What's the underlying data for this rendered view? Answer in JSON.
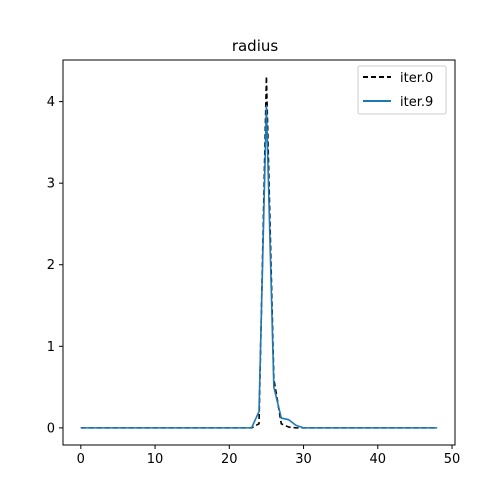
{
  "chart_data": {
    "type": "line",
    "title": "radius",
    "xlabel": "",
    "ylabel": "",
    "xlim": [
      -2.4,
      50.4
    ],
    "ylim": [
      -0.21,
      4.51
    ],
    "xticks": [
      0,
      10,
      20,
      30,
      40,
      50
    ],
    "yticks": [
      0,
      1,
      2,
      3,
      4
    ],
    "grid": false,
    "legend": "top-right",
    "series": [
      {
        "name": "iter.0",
        "color": "#000000",
        "style": "dashed",
        "x": [
          0,
          1,
          2,
          3,
          4,
          5,
          6,
          7,
          8,
          9,
          10,
          11,
          12,
          13,
          14,
          15,
          16,
          17,
          18,
          19,
          20,
          21,
          22,
          23,
          24,
          25,
          26,
          27,
          28,
          29,
          30,
          31,
          32,
          33,
          34,
          35,
          36,
          37,
          38,
          39,
          40,
          41,
          42,
          43,
          44,
          45,
          46,
          47,
          48
        ],
        "y": [
          0,
          0,
          0,
          0,
          0,
          0,
          0,
          0,
          0,
          0,
          0,
          0,
          0,
          0,
          0,
          0,
          0,
          0,
          0,
          0,
          0,
          0,
          0,
          0,
          0.05,
          4.31,
          0.6,
          0.05,
          0.01,
          0,
          0,
          0,
          0,
          0,
          0,
          0,
          0,
          0,
          0,
          0,
          0,
          0,
          0,
          0,
          0,
          0,
          0,
          0,
          0
        ]
      },
      {
        "name": "iter.9",
        "color": "#1f77b4",
        "style": "solid",
        "x": [
          0,
          1,
          2,
          3,
          4,
          5,
          6,
          7,
          8,
          9,
          10,
          11,
          12,
          13,
          14,
          15,
          16,
          17,
          18,
          19,
          20,
          21,
          22,
          23,
          24,
          25,
          26,
          27,
          28,
          29,
          30,
          31,
          32,
          33,
          34,
          35,
          36,
          37,
          38,
          39,
          40,
          41,
          42,
          43,
          44,
          45,
          46,
          47,
          48
        ],
        "y": [
          0,
          0,
          0,
          0,
          0,
          0,
          0,
          0,
          0,
          0,
          0,
          0,
          0,
          0,
          0,
          0,
          0,
          0,
          0,
          0,
          0,
          0,
          0,
          0,
          0.2,
          3.95,
          0.5,
          0.12,
          0.1,
          0.03,
          0,
          0,
          0,
          0,
          0,
          0,
          0,
          0,
          0,
          0,
          0,
          0,
          0,
          0,
          0,
          0,
          0,
          0,
          0
        ]
      }
    ]
  }
}
